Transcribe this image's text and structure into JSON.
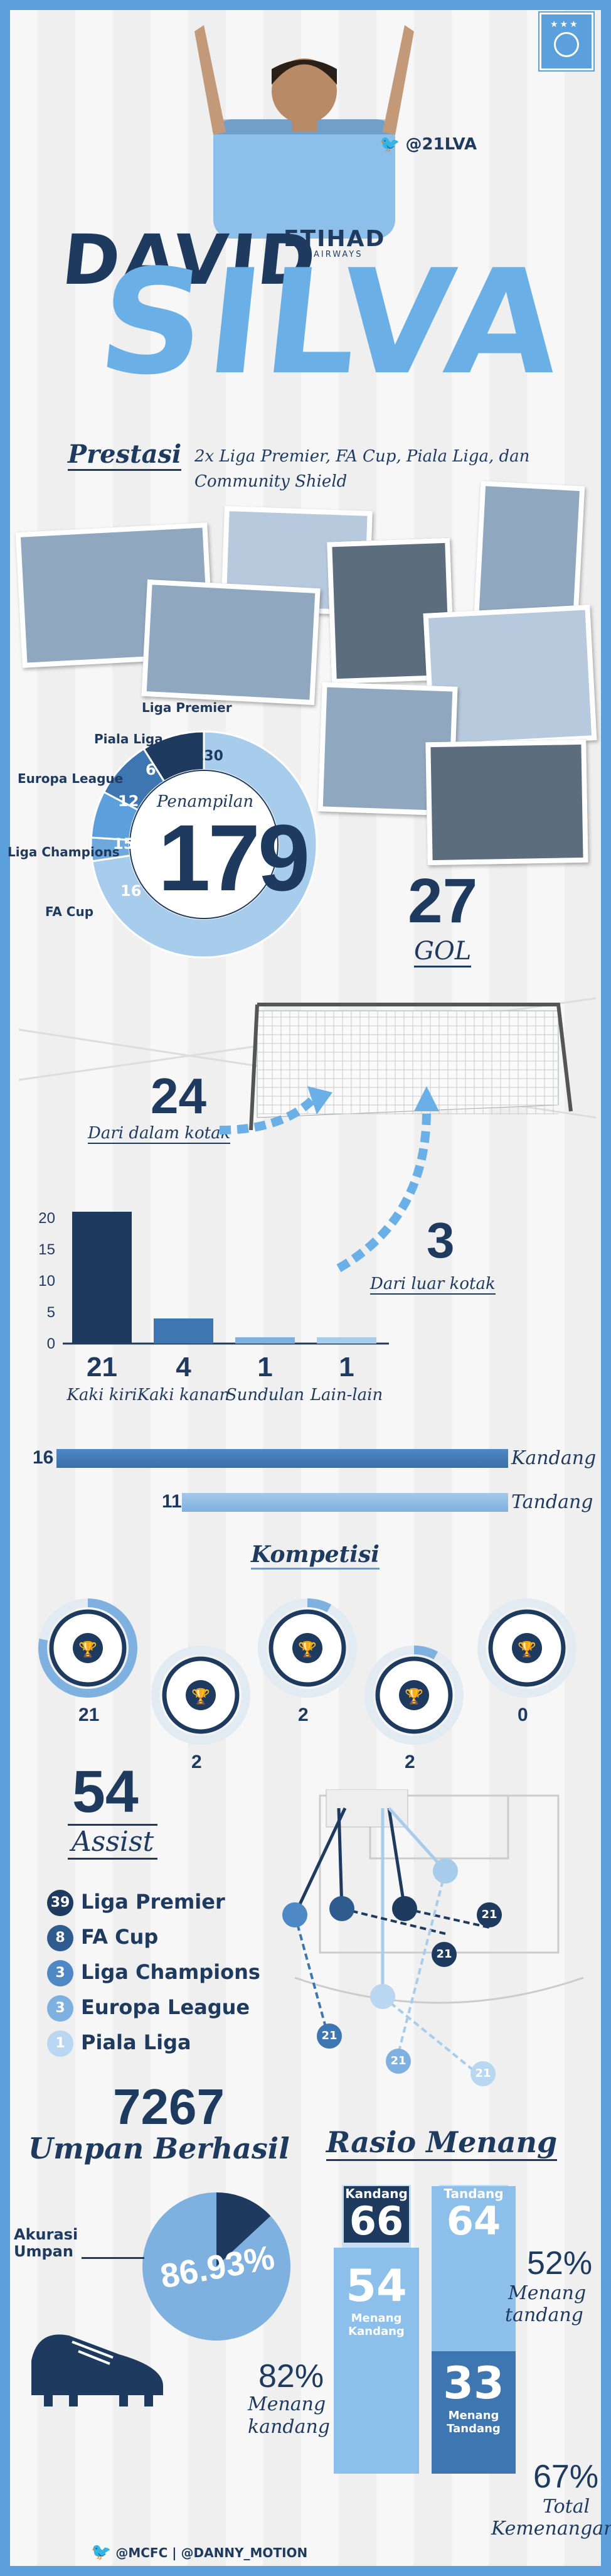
{
  "header": {
    "first_name": "DAVID",
    "last_name": "SILVA",
    "twitter_handle": "@21LVA",
    "shirt_sponsor_top": "ETIHAD",
    "shirt_sponsor_bottom": "AIRWAYS",
    "crest_icon": "club-crest-icon"
  },
  "prestasi": {
    "title": "Prestasi",
    "text_line1": "2x Liga Premier, FA Cup, Piala Liga, dan",
    "text_line2": "Community Shield"
  },
  "appearances": {
    "title": "Penampilan",
    "total": "179",
    "segments": [
      {
        "label": "Liga Premier",
        "value": "130",
        "color": "#a7ccec"
      },
      {
        "label": "Piala Liga",
        "value": "6",
        "color": "#6ea8dc"
      },
      {
        "label": "Europa League",
        "value": "12",
        "color": "#5b9fdc"
      },
      {
        "label": "Liga Champions",
        "value": "15",
        "color": "#3d76b0"
      },
      {
        "label": "FA Cup",
        "value": "16",
        "color": "#1f3a5f"
      }
    ]
  },
  "goals": {
    "total": "27",
    "label": "GOL",
    "inside_box_value": "24",
    "inside_box_label": "Dari dalam kotak",
    "outside_box_value": "3",
    "outside_box_label": "Dari luar kotak"
  },
  "chart_data": {
    "type": "bar",
    "categories": [
      "Kaki kiri",
      "Kaki kanan",
      "Sundulan",
      "Lain-lain"
    ],
    "values": [
      21,
      4,
      1,
      1
    ],
    "value_labels": [
      "21",
      "4",
      "1",
      "1"
    ],
    "yticks": [
      "0",
      "5",
      "10",
      "15",
      "20"
    ],
    "ylim": [
      0,
      22
    ],
    "colors": [
      "#1f3a5f",
      "#3d76b0",
      "#7fb1e0",
      "#a7ccec"
    ]
  },
  "home_away": [
    {
      "value": "16",
      "label": "Kandang"
    },
    {
      "value": "11",
      "label": "Tandang"
    }
  ],
  "kompetisi": {
    "title": "Kompetisi",
    "items": [
      {
        "value": "21",
        "fill": 0.78,
        "icon": "premier-league-trophy-icon"
      },
      {
        "value": "2",
        "fill": 0.0,
        "icon": "fa-cup-trophy-icon"
      },
      {
        "value": "2",
        "fill": 0.08,
        "icon": "champions-league-trophy-icon"
      },
      {
        "value": "2",
        "fill": 0.08,
        "icon": "europa-league-trophy-icon"
      },
      {
        "value": "0",
        "fill": 0.0,
        "icon": "league-cup-trophy-icon"
      }
    ]
  },
  "assist": {
    "total": "54",
    "label": "Assist",
    "items": [
      {
        "value": "39",
        "label": "Liga Premier",
        "color": "#1f3a5f"
      },
      {
        "value": "8",
        "label": "FA Cup",
        "color": "#2f5c8f"
      },
      {
        "value": "3",
        "label": "Liga Champions",
        "color": "#4e89c6"
      },
      {
        "value": "3",
        "label": "Europa League",
        "color": "#7fb1e0"
      },
      {
        "value": "1",
        "label": "Piala Liga",
        "color": "#b9d7f1"
      }
    ],
    "pitch_badges": [
      "21",
      "21",
      "21",
      "21",
      "21"
    ]
  },
  "passes": {
    "total": "7267",
    "label": "Umpan Berhasil",
    "accuracy_label_line1": "Akurasi",
    "accuracy_label_line2": "Umpan",
    "accuracy_value": "86.93%"
  },
  "win_ratio": {
    "title": "Rasio Menang",
    "home_header": "Kandang",
    "home_played": "66",
    "home_wins": "54",
    "home_wins_label": "Menang Kandang",
    "away_header": "Tandang",
    "away_played": "64",
    "away_wins": "33",
    "away_wins_label": "Menang Tandang",
    "away_pct": "52%",
    "away_pct_label_1": "Menang",
    "away_pct_label_2": "tandang",
    "home_pct": "82%",
    "home_pct_label_1": "Menang",
    "home_pct_label_2": "kandang",
    "total_pct": "67%",
    "total_pct_label_1": "Total",
    "total_pct_label_2": "Kemenangan"
  },
  "footer": {
    "credits": "@MCFC | @DANNY_MOTION"
  }
}
